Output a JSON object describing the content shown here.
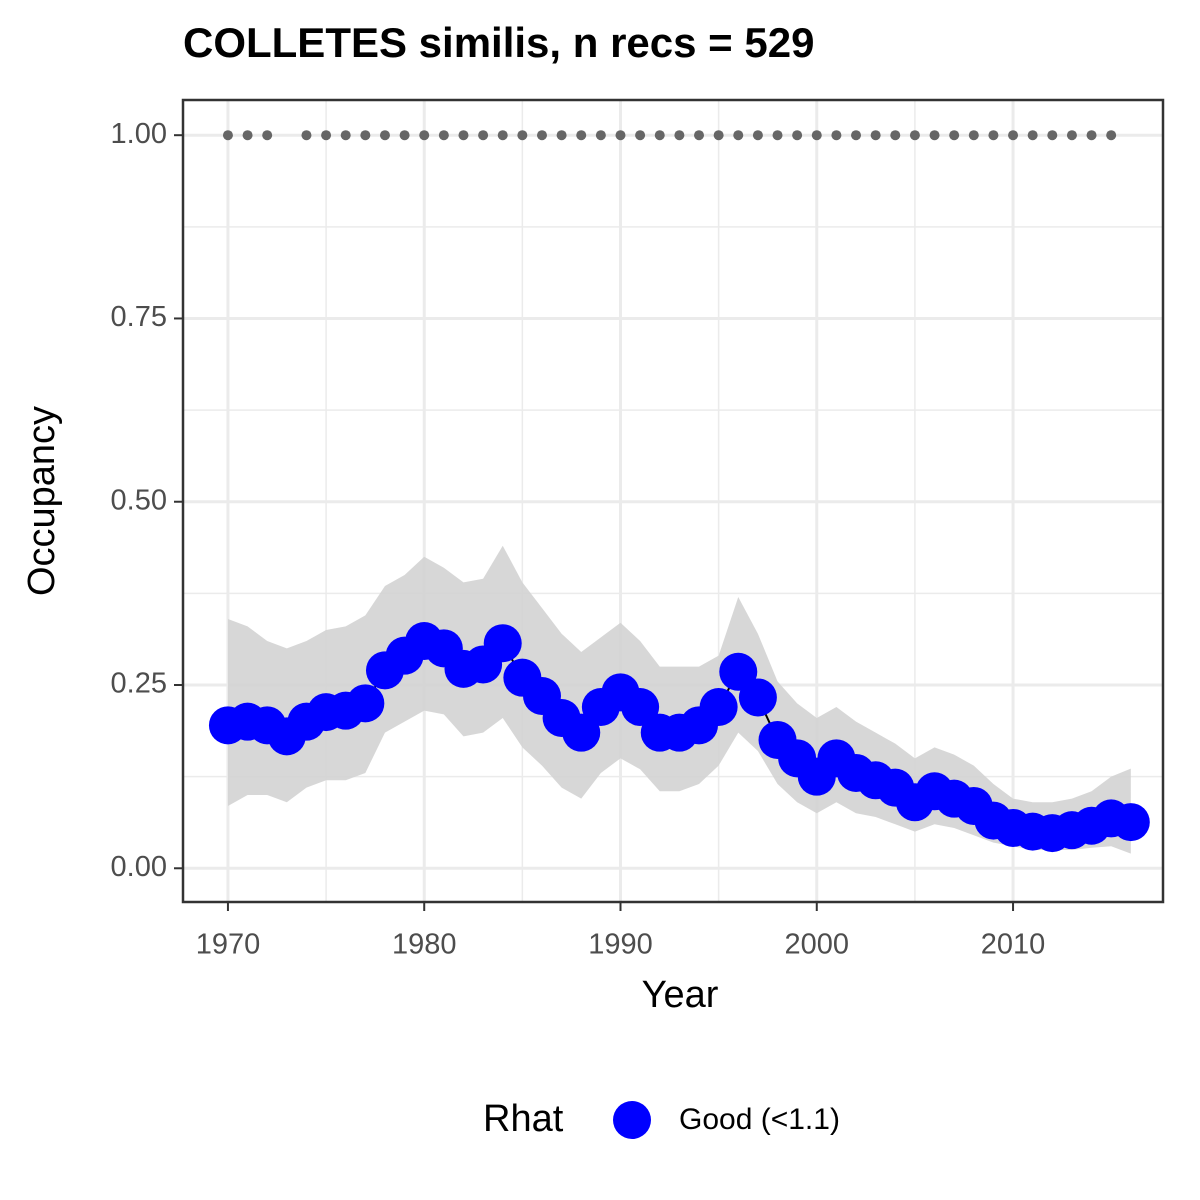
{
  "chart_data": {
    "type": "line",
    "title": "COLLETES similis, n recs = 529",
    "x_label": "Year",
    "y_label": "Occupancy",
    "x": [
      1970,
      1971,
      1972,
      1973,
      1974,
      1975,
      1976,
      1977,
      1978,
      1979,
      1980,
      1981,
      1982,
      1983,
      1984,
      1985,
      1986,
      1987,
      1988,
      1989,
      1990,
      1991,
      1992,
      1993,
      1994,
      1995,
      1996,
      1997,
      1998,
      1999,
      2000,
      2001,
      2002,
      2003,
      2004,
      2005,
      2006,
      2007,
      2008,
      2009,
      2010,
      2011,
      2012,
      2013,
      2014,
      2015,
      2016
    ],
    "series": [
      {
        "name": "Good (<1.1)",
        "color": "#0000ff",
        "values": [
          0.195,
          0.2,
          0.195,
          0.18,
          0.2,
          0.213,
          0.215,
          0.225,
          0.27,
          0.29,
          0.31,
          0.3,
          0.272,
          0.278,
          0.307,
          0.26,
          0.235,
          0.205,
          0.185,
          0.22,
          0.24,
          0.22,
          0.185,
          0.185,
          0.195,
          0.22,
          0.268,
          0.233,
          0.175,
          0.15,
          0.125,
          0.15,
          0.13,
          0.12,
          0.11,
          0.09,
          0.105,
          0.095,
          0.085,
          0.065,
          0.055,
          0.05,
          0.048,
          0.052,
          0.058,
          0.068,
          0.063
        ]
      }
    ],
    "upper": [
      0.34,
      0.33,
      0.31,
      0.3,
      0.31,
      0.325,
      0.33,
      0.345,
      0.385,
      0.4,
      0.425,
      0.41,
      0.39,
      0.395,
      0.44,
      0.39,
      0.355,
      0.32,
      0.295,
      0.315,
      0.335,
      0.31,
      0.275,
      0.275,
      0.275,
      0.29,
      0.37,
      0.32,
      0.255,
      0.225,
      0.205,
      0.22,
      0.2,
      0.185,
      0.17,
      0.15,
      0.165,
      0.155,
      0.14,
      0.115,
      0.095,
      0.09,
      0.09,
      0.095,
      0.105,
      0.125,
      0.136
    ],
    "lower": [
      0.085,
      0.1,
      0.1,
      0.09,
      0.11,
      0.12,
      0.12,
      0.13,
      0.185,
      0.2,
      0.215,
      0.21,
      0.18,
      0.185,
      0.205,
      0.165,
      0.14,
      0.11,
      0.095,
      0.13,
      0.15,
      0.135,
      0.105,
      0.105,
      0.115,
      0.14,
      0.185,
      0.16,
      0.115,
      0.09,
      0.075,
      0.09,
      0.075,
      0.07,
      0.06,
      0.05,
      0.06,
      0.055,
      0.045,
      0.035,
      0.03,
      0.025,
      0.025,
      0.025,
      0.028,
      0.03,
      0.02
    ],
    "band_color": "#d3d3d3",
    "records": {
      "color": "#666666",
      "x": [
        1970,
        1971,
        1972,
        1974,
        1975,
        1976,
        1977,
        1978,
        1979,
        1980,
        1981,
        1982,
        1983,
        1984,
        1985,
        1986,
        1987,
        1988,
        1989,
        1990,
        1991,
        1992,
        1993,
        1994,
        1995,
        1996,
        1997,
        1998,
        1999,
        2000,
        2001,
        2002,
        2003,
        2004,
        2005,
        2006,
        2007,
        2008,
        2009,
        2010,
        2011,
        2012,
        2013,
        2014,
        2015
      ],
      "values": [
        1,
        1,
        1,
        1,
        1,
        1,
        1,
        1,
        1,
        1,
        1,
        1,
        1,
        1,
        1,
        1,
        1,
        1,
        1,
        1,
        1,
        1,
        1,
        1,
        1,
        1,
        1,
        1,
        1,
        1,
        1,
        1,
        1,
        1,
        1,
        1,
        1,
        1,
        1,
        1,
        1,
        1,
        1,
        1,
        1
      ]
    },
    "xlim": [
      1967.71,
      2017.64
    ],
    "ylim": [
      -0.046,
      1.048
    ],
    "xticks": [
      1970,
      1980,
      1990,
      2000,
      2010
    ],
    "yticks": [
      {
        "value": 0,
        "label": "0.00"
      },
      {
        "value": 0.25,
        "label": "0.25"
      },
      {
        "value": 0.5,
        "label": "0.50"
      },
      {
        "value": 0.75,
        "label": "0.75"
      },
      {
        "value": 1,
        "label": "1.00"
      }
    ],
    "grid": true,
    "legend_title": "Rhat",
    "legend_position": "bottom"
  }
}
